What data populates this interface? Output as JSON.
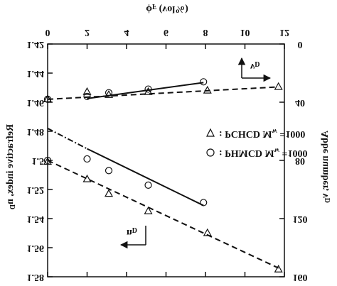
{
  "chart_data": {
    "type": "scatter",
    "xlabel": {
      "text": "ϕ",
      "sub": "F",
      "suffix": " (vol%)"
    },
    "ylabel": {
      "text": "Refractive index, n",
      "sub": "D"
    },
    "y2label": {
      "text": "Abbe number, ν",
      "sub": "D"
    },
    "xlim": [
      0,
      12
    ],
    "xticks": [
      0,
      2,
      4,
      6,
      8,
      10,
      12
    ],
    "ylim": [
      1.42,
      1.58
    ],
    "yticks": [
      1.42,
      1.44,
      1.46,
      1.48,
      {
        "value": 1.5,
        "label": "1.5"
      },
      1.52,
      1.54,
      1.56,
      1.58
    ],
    "y2lim": [
      0,
      160
    ],
    "y2ticks": [
      0,
      40,
      80,
      120,
      160
    ],
    "color": "#111111",
    "legend": [
      {
        "marker": "triangle",
        "text": ": PCHCD M",
        "sub": "w",
        "suffix": " =1000"
      },
      {
        "marker": "circle",
        "text": ": PHMCD M",
        "sub": "w",
        "suffix": " =1000"
      }
    ],
    "series": [
      {
        "marker": "triangle",
        "axis": "y",
        "x": [
          0,
          2,
          3.1,
          5.1,
          8.1,
          11.7
        ],
        "values": [
          1.501,
          1.513,
          1.523,
          1.535,
          1.55,
          1.575
        ]
      },
      {
        "marker": "circle",
        "axis": "y",
        "x": [
          0,
          2,
          3.1,
          5.1,
          7.9
        ],
        "values": [
          1.5,
          1.499,
          1.507,
          1.517,
          1.529
        ]
      },
      {
        "marker": "triangle",
        "axis": "y2",
        "x": [
          0,
          2,
          3.1,
          5.1,
          8.1,
          11.7
        ],
        "values": [
          38,
          33,
          35,
          33,
          32,
          29.5
        ]
      },
      {
        "marker": "circle",
        "axis": "y2",
        "x": [
          0,
          2,
          3.1,
          5.1,
          7.9
        ],
        "values": [
          38,
          36,
          33.5,
          31,
          26
        ]
      }
    ],
    "fits": [
      {
        "dash": "dashed",
        "axis": "y",
        "x": [
          0,
          11.7
        ],
        "values": [
          1.5,
          1.574
        ]
      },
      {
        "dash": "dashdot",
        "axis": "y",
        "x": [
          0,
          2
        ],
        "values": [
          1.478,
          1.492
        ]
      },
      {
        "dash": "solid",
        "axis": "y",
        "x": [
          2,
          7.9
        ],
        "values": [
          1.492,
          1.531
        ]
      },
      {
        "dash": "dashed",
        "axis": "y2",
        "x": [
          0,
          11.7
        ],
        "values": [
          38,
          29.5
        ]
      },
      {
        "dash": "solid",
        "axis": "y2",
        "x": [
          2,
          7.9
        ],
        "values": [
          37.5,
          26.5
        ]
      }
    ],
    "annotations": [
      {
        "text": "ν",
        "sub": "D"
      },
      {
        "text": "n",
        "sub": "D"
      }
    ]
  }
}
